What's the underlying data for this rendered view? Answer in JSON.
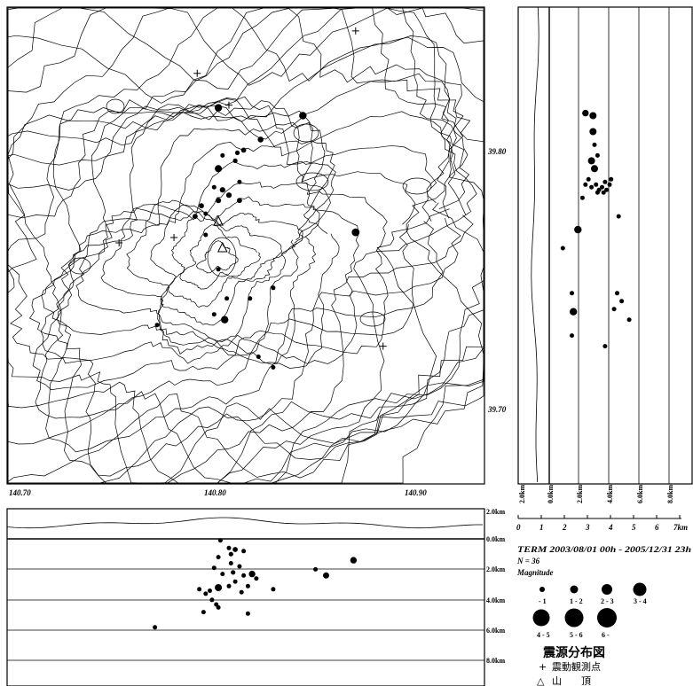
{
  "map": {
    "lon_ticks": [
      "140.70",
      "140.80",
      "140.90"
    ],
    "lat_ticks": [
      "39.80",
      "39.70"
    ],
    "stations": [
      [
        140.79,
        39.822
      ],
      [
        140.805,
        39.81
      ],
      [
        140.865,
        39.838
      ],
      [
        140.753,
        39.758
      ],
      [
        140.779,
        39.76
      ],
      [
        140.878,
        39.719
      ]
    ],
    "summits": [
      [
        140.8,
        39.766
      ],
      [
        140.802,
        39.756
      ]
    ],
    "quakes_map": [
      [
        140.8,
        39.809,
        3.4
      ],
      [
        140.84,
        39.806,
        3.4
      ],
      [
        140.82,
        39.797,
        3.0
      ],
      [
        140.812,
        39.793,
        2.8
      ],
      [
        140.809,
        39.792,
        2.7
      ],
      [
        140.808,
        39.789,
        2.7
      ],
      [
        140.802,
        39.791,
        2.6
      ],
      [
        140.8,
        39.786,
        3.3
      ],
      [
        140.81,
        39.781,
        2.4
      ],
      [
        140.798,
        39.779,
        2.6
      ],
      [
        140.802,
        39.778,
        2.9
      ],
      [
        140.805,
        39.776,
        2.9
      ],
      [
        140.8,
        39.774,
        2.9
      ],
      [
        140.81,
        39.774,
        2.8
      ],
      [
        140.792,
        39.772,
        2.8
      ],
      [
        140.789,
        39.768,
        2.8
      ],
      [
        140.794,
        39.769,
        2.5
      ],
      [
        140.794,
        39.761,
        2.2
      ],
      [
        140.865,
        39.762,
        3.5
      ],
      [
        140.8,
        39.748,
        2.3
      ],
      [
        140.804,
        39.737,
        2.3
      ],
      [
        140.815,
        39.737,
        2.4
      ],
      [
        140.826,
        39.741,
        2.3
      ],
      [
        140.798,
        39.731,
        2.6
      ],
      [
        140.803,
        39.729,
        3.4
      ],
      [
        140.771,
        39.727,
        2.4
      ],
      [
        140.819,
        39.715,
        2.3
      ],
      [
        140.826,
        39.711,
        2.2
      ]
    ],
    "quakes_depth_lat": [
      [
        2.4,
        39.807,
        3.2
      ],
      [
        2.9,
        39.806,
        3.3
      ],
      [
        2.9,
        39.8,
        3.3
      ],
      [
        3.0,
        39.795,
        2.5
      ],
      [
        3.2,
        39.791,
        2.4
      ],
      [
        2.8,
        39.789,
        3.3
      ],
      [
        3.0,
        39.786,
        3.3
      ],
      [
        2.6,
        39.782,
        2.6
      ],
      [
        2.4,
        39.78,
        2.5
      ],
      [
        2.8,
        39.779,
        2.5
      ],
      [
        3.1,
        39.78,
        2.5
      ],
      [
        3.3,
        39.778,
        2.5
      ],
      [
        3.5,
        39.779,
        2.5
      ],
      [
        3.7,
        39.781,
        2.6
      ],
      [
        3.6,
        39.777,
        2.3
      ],
      [
        3.8,
        39.778,
        2.3
      ],
      [
        4.0,
        39.78,
        2.5
      ],
      [
        3.2,
        39.777,
        2.4
      ],
      [
        2.2,
        39.775,
        2.4
      ],
      [
        4.1,
        39.782,
        2.5
      ],
      [
        4.6,
        39.768,
        2.3
      ],
      [
        1.9,
        39.763,
        3.4
      ],
      [
        0.9,
        39.756,
        2.6
      ],
      [
        1.5,
        39.739,
        2.3
      ],
      [
        4.5,
        39.739,
        2.3
      ],
      [
        4.8,
        39.736,
        2.3
      ],
      [
        1.6,
        39.732,
        3.4
      ],
      [
        4.3,
        39.733,
        2.3
      ],
      [
        5.3,
        39.729,
        2.4
      ],
      [
        1.5,
        39.723,
        2.3
      ],
      [
        3.7,
        39.719,
        2.2
      ]
    ],
    "quakes_lon_depth": [
      [
        140.801,
        0.1,
        2.3
      ],
      [
        140.805,
        0.6,
        2.6
      ],
      [
        140.808,
        0.7,
        2.8
      ],
      [
        140.806,
        1.0,
        2.7
      ],
      [
        140.812,
        0.8,
        2.4
      ],
      [
        140.8,
        1.2,
        2.5
      ],
      [
        140.806,
        1.6,
        2.5
      ],
      [
        140.81,
        1.8,
        2.5
      ],
      [
        140.798,
        1.9,
        2.6
      ],
      [
        140.807,
        2.2,
        2.7
      ],
      [
        140.802,
        2.3,
        2.5
      ],
      [
        140.812,
        2.4,
        2.5
      ],
      [
        140.816,
        2.3,
        3.2
      ],
      [
        140.818,
        2.6,
        2.4
      ],
      [
        140.808,
        2.8,
        2.6
      ],
      [
        140.814,
        3.1,
        2.5
      ],
      [
        140.791,
        3.3,
        2.5
      ],
      [
        140.794,
        3.6,
        2.5
      ],
      [
        140.805,
        3.1,
        2.5
      ],
      [
        140.8,
        3.2,
        3.3
      ],
      [
        140.796,
        3.4,
        2.6
      ],
      [
        140.811,
        3.5,
        2.4
      ],
      [
        140.826,
        3.3,
        2.3
      ],
      [
        140.846,
        2.0,
        2.6
      ],
      [
        140.851,
        2.4,
        3.1
      ],
      [
        140.864,
        1.4,
        3.2
      ],
      [
        140.797,
        4.0,
        2.5
      ],
      [
        140.8,
        4.5,
        2.5
      ],
      [
        140.814,
        4.9,
        2.3
      ],
      [
        140.799,
        4.3,
        2.3
      ],
      [
        140.793,
        4.8,
        2.5
      ],
      [
        140.77,
        5.8,
        2.4
      ]
    ],
    "contour_colors": {
      "topo": "#000000",
      "grid": "#000000"
    }
  },
  "depth_axis": {
    "depth_ticks": [
      "2.0km",
      "0.0km",
      "2.0km",
      "4.0km",
      "6.0km",
      "8.0km"
    ],
    "vert_ticks": [
      "2.0km",
      "0.0km",
      "2.0km",
      "4.0km",
      "6.0km",
      "8.0km"
    ],
    "scale_numbers": [
      "0",
      "1",
      "2",
      "3",
      "4",
      "5",
      "6",
      "7km"
    ]
  },
  "info": {
    "term": "TERM 2003/08/01 00h - 2005/12/31 23h",
    "n": "N = 36",
    "magnitude_label": "Magnitude",
    "mag_classes": [
      "- 1",
      "1 - 2",
      "2 - 3",
      "3 - 4",
      "4 - 5",
      "5 - 6",
      "6 -"
    ],
    "title": "震源分布図",
    "station_legend": "震動観測点",
    "summit_legend": "山　　頂",
    "station_symbol": "+",
    "summit_symbol": "△"
  }
}
